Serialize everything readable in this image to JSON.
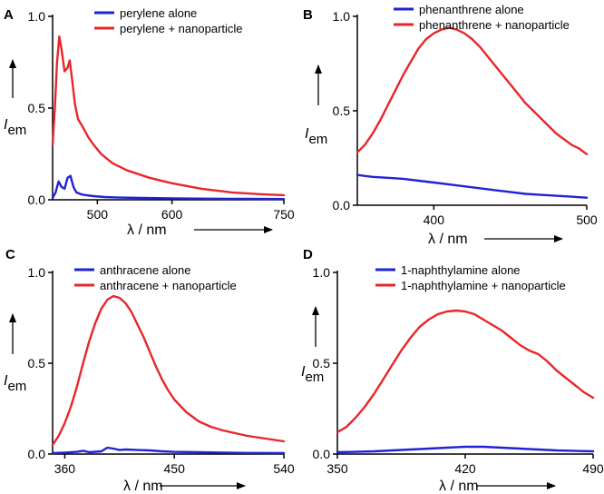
{
  "figure": {
    "colors": {
      "alone": "#1f23d6",
      "nano": "#e8262a",
      "axis": "#000000"
    }
  },
  "chart_data": [
    {
      "panel": "A",
      "type": "line",
      "ylabel_main": "I",
      "ylabel_sub": "em",
      "xlabel": "λ / nm",
      "xlim": [
        440,
        750
      ],
      "ylim": [
        0,
        1.0
      ],
      "xticks": [
        500,
        600,
        750
      ],
      "xtick_labels": [
        "500",
        "600",
        "750"
      ],
      "yticks": [
        0,
        0.5,
        1.0
      ],
      "ytick_labels": [
        "0.0",
        "0.5",
        "1.0"
      ],
      "series": [
        {
          "name": "perylene alone",
          "color": "#1f23d6",
          "x": [
            440,
            444,
            448,
            452,
            456,
            460,
            464,
            468,
            472,
            478,
            485,
            495,
            510,
            530,
            560,
            600,
            650,
            700,
            750
          ],
          "y": [
            0.01,
            0.04,
            0.1,
            0.07,
            0.06,
            0.12,
            0.13,
            0.07,
            0.04,
            0.03,
            0.025,
            0.02,
            0.015,
            0.012,
            0.01,
            0.008,
            0.006,
            0.005,
            0.004
          ]
        },
        {
          "name": "perylene + nanoparticle",
          "color": "#e8262a",
          "x": [
            440,
            443,
            446,
            449,
            452,
            456,
            460,
            463,
            466,
            470,
            474,
            480,
            488,
            495,
            505,
            520,
            540,
            570,
            600,
            640,
            680,
            720,
            750
          ],
          "y": [
            0.3,
            0.5,
            0.75,
            0.89,
            0.82,
            0.7,
            0.72,
            0.76,
            0.66,
            0.52,
            0.44,
            0.4,
            0.34,
            0.3,
            0.25,
            0.2,
            0.16,
            0.12,
            0.09,
            0.06,
            0.04,
            0.03,
            0.025
          ]
        }
      ]
    },
    {
      "panel": "B",
      "type": "line",
      "ylabel_main": "I",
      "ylabel_sub": "em",
      "xlabel": "λ / nm",
      "xlim": [
        350,
        500
      ],
      "ylim": [
        0,
        1.0
      ],
      "xticks": [
        400,
        500
      ],
      "xtick_labels": [
        "400",
        "500"
      ],
      "yticks": [
        0,
        0.5,
        1.0
      ],
      "ytick_labels": [
        "0.0",
        "0.5",
        "1.0"
      ],
      "series": [
        {
          "name": "phenanthrene alone",
          "color": "#1f23d6",
          "x": [
            350,
            360,
            370,
            380,
            390,
            400,
            410,
            420,
            430,
            440,
            450,
            460,
            470,
            480,
            490,
            500
          ],
          "y": [
            0.16,
            0.15,
            0.145,
            0.14,
            0.13,
            0.12,
            0.11,
            0.1,
            0.09,
            0.08,
            0.07,
            0.06,
            0.055,
            0.05,
            0.045,
            0.04
          ]
        },
        {
          "name": "phenanthrene + nanoparticle",
          "color": "#e8262a",
          "x": [
            350,
            355,
            360,
            365,
            370,
            375,
            380,
            385,
            390,
            395,
            400,
            405,
            410,
            415,
            420,
            425,
            430,
            435,
            440,
            445,
            450,
            455,
            460,
            465,
            470,
            475,
            480,
            485,
            490,
            495,
            500
          ],
          "y": [
            0.28,
            0.32,
            0.38,
            0.45,
            0.53,
            0.61,
            0.69,
            0.76,
            0.83,
            0.88,
            0.91,
            0.93,
            0.94,
            0.93,
            0.91,
            0.88,
            0.84,
            0.79,
            0.74,
            0.69,
            0.64,
            0.59,
            0.54,
            0.5,
            0.46,
            0.42,
            0.38,
            0.35,
            0.32,
            0.3,
            0.27
          ]
        }
      ]
    },
    {
      "panel": "C",
      "type": "line",
      "ylabel_main": "I",
      "ylabel_sub": "em",
      "xlabel": "λ / nm",
      "xlim": [
        350,
        540
      ],
      "ylim": [
        0,
        1.0
      ],
      "xticks": [
        360,
        450,
        540
      ],
      "xtick_labels": [
        "360",
        "450",
        "540"
      ],
      "yticks": [
        0,
        0.5,
        1.0
      ],
      "ytick_labels": [
        "0.0",
        "0.5",
        "1.0"
      ],
      "series": [
        {
          "name": "anthracene alone",
          "color": "#1f23d6",
          "x": [
            350,
            360,
            370,
            375,
            380,
            390,
            395,
            400,
            405,
            410,
            420,
            430,
            440,
            450,
            470,
            490,
            510,
            540
          ],
          "y": [
            0.005,
            0.008,
            0.012,
            0.018,
            0.01,
            0.015,
            0.035,
            0.03,
            0.022,
            0.025,
            0.022,
            0.02,
            0.015,
            0.012,
            0.01,
            0.008,
            0.006,
            0.005
          ]
        },
        {
          "name": "anthracene + nanoparticle",
          "color": "#e8262a",
          "x": [
            350,
            355,
            360,
            365,
            370,
            375,
            380,
            385,
            390,
            395,
            400,
            405,
            410,
            415,
            420,
            425,
            430,
            435,
            440,
            445,
            450,
            460,
            470,
            480,
            490,
            500,
            510,
            520,
            530,
            540
          ],
          "y": [
            0.05,
            0.1,
            0.17,
            0.26,
            0.37,
            0.5,
            0.62,
            0.72,
            0.8,
            0.85,
            0.87,
            0.86,
            0.83,
            0.78,
            0.71,
            0.64,
            0.56,
            0.48,
            0.41,
            0.35,
            0.3,
            0.23,
            0.18,
            0.15,
            0.13,
            0.115,
            0.1,
            0.09,
            0.08,
            0.07
          ]
        }
      ]
    },
    {
      "panel": "D",
      "type": "line",
      "ylabel_main": "I",
      "ylabel_sub": "em",
      "xlabel": "λ / nm",
      "xlim": [
        350,
        490
      ],
      "ylim": [
        0,
        1.0
      ],
      "xticks": [
        350,
        420,
        490
      ],
      "xtick_labels": [
        "350",
        "420",
        "490"
      ],
      "yticks": [
        0,
        0.5,
        1.0
      ],
      "ytick_labels": [
        "0.0",
        "0.5",
        "1.0"
      ],
      "series": [
        {
          "name": "1-naphthylamine alone",
          "color": "#1f23d6",
          "x": [
            350,
            370,
            390,
            410,
            420,
            430,
            450,
            470,
            490
          ],
          "y": [
            0.01,
            0.015,
            0.025,
            0.035,
            0.04,
            0.04,
            0.03,
            0.02,
            0.015
          ]
        },
        {
          "name": "1-naphthylamine + nanoparticle",
          "color": "#e8262a",
          "x": [
            350,
            355,
            360,
            365,
            370,
            375,
            380,
            385,
            390,
            395,
            400,
            405,
            410,
            415,
            420,
            425,
            430,
            435,
            440,
            445,
            450,
            455,
            460,
            465,
            470,
            475,
            480,
            485,
            490
          ],
          "y": [
            0.12,
            0.15,
            0.2,
            0.26,
            0.33,
            0.41,
            0.49,
            0.57,
            0.64,
            0.7,
            0.74,
            0.77,
            0.785,
            0.79,
            0.785,
            0.77,
            0.74,
            0.71,
            0.68,
            0.64,
            0.6,
            0.57,
            0.55,
            0.51,
            0.46,
            0.42,
            0.38,
            0.34,
            0.31
          ]
        }
      ]
    }
  ]
}
